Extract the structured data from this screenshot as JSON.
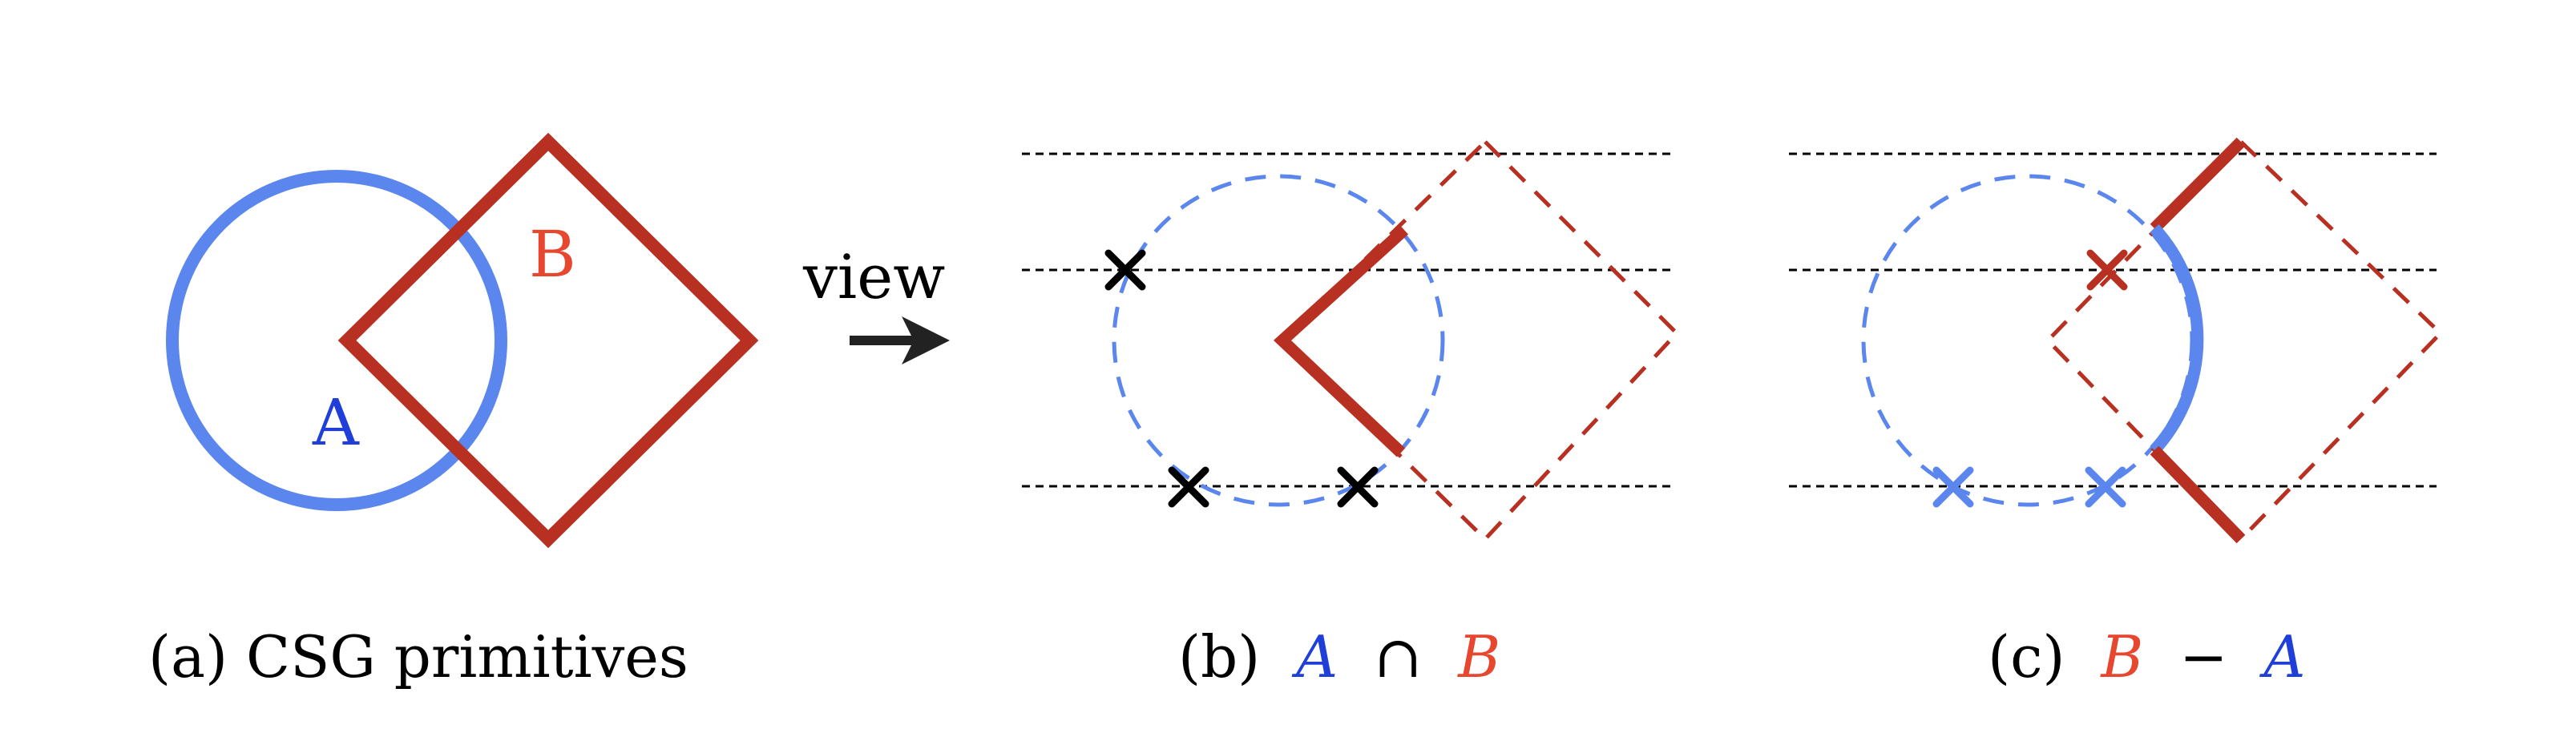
{
  "colors": {
    "A": "#5a86ee",
    "B": "#b83022",
    "B_text": "#e8472f",
    "A_text": "#1f3fd8",
    "ray": "#000000"
  },
  "panel_a": {
    "label_A": "A",
    "label_B": "B",
    "caption": "(a) CSG primitives"
  },
  "view_arrow": {
    "label": "view",
    "icon": "arrow-right-icon"
  },
  "panel_b": {
    "caption_prefix": "(b)",
    "caption_A": "A",
    "caption_op": "∩",
    "caption_B": "B"
  },
  "panel_c": {
    "caption_prefix": "(c)",
    "caption_B": "B",
    "caption_op": "−",
    "caption_A": "A"
  }
}
